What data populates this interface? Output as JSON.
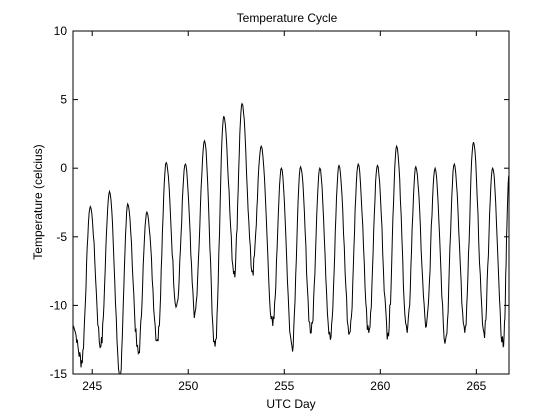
{
  "chart_data": {
    "type": "line",
    "title": "Temperature Cycle",
    "xlabel": "UTC Day",
    "ylabel": "Temperature (celcius)",
    "xlim": [
      244,
      266.7
    ],
    "ylim": [
      -15,
      10
    ],
    "xticks": [
      245,
      250,
      255,
      260,
      265
    ],
    "yticks": [
      -15,
      -10,
      -5,
      0,
      5,
      10
    ],
    "grid": false,
    "line_color": "#000000",
    "series": [
      {
        "extrema": [
          [
            244.0,
            -11.5
          ],
          [
            244.45,
            -14.0
          ],
          [
            244.9,
            -2.8
          ],
          [
            245.45,
            -13.0
          ],
          [
            245.9,
            -1.7
          ],
          [
            246.45,
            -15.0
          ],
          [
            246.85,
            -2.6
          ],
          [
            247.4,
            -13.5
          ],
          [
            247.85,
            -3.2
          ],
          [
            248.4,
            -12.5
          ],
          [
            248.85,
            0.4
          ],
          [
            249.4,
            -10.0
          ],
          [
            249.85,
            0.3
          ],
          [
            250.35,
            -10.5
          ],
          [
            250.85,
            2.0
          ],
          [
            251.4,
            -13.0
          ],
          [
            251.85,
            3.8
          ],
          [
            252.4,
            -7.5
          ],
          [
            252.8,
            4.7
          ],
          [
            253.35,
            -7.5
          ],
          [
            253.8,
            1.6
          ],
          [
            254.4,
            -11.5
          ],
          [
            254.85,
            0.0
          ],
          [
            255.4,
            -13.0
          ],
          [
            255.85,
            0.1
          ],
          [
            256.4,
            -12.0
          ],
          [
            256.85,
            0.0
          ],
          [
            257.4,
            -12.5
          ],
          [
            257.85,
            0.2
          ],
          [
            258.4,
            -12.0
          ],
          [
            258.85,
            0.3
          ],
          [
            259.4,
            -12.0
          ],
          [
            259.85,
            0.2
          ],
          [
            260.4,
            -12.0
          ],
          [
            260.85,
            1.6
          ],
          [
            261.4,
            -12.0
          ],
          [
            261.85,
            0.1
          ],
          [
            262.4,
            -11.5
          ],
          [
            262.85,
            0.0
          ],
          [
            263.4,
            -12.5
          ],
          [
            263.85,
            0.3
          ],
          [
            264.4,
            -12.0
          ],
          [
            264.85,
            1.9
          ],
          [
            265.4,
            -12.0
          ],
          [
            265.85,
            0.0
          ],
          [
            266.4,
            -13.0
          ],
          [
            266.7,
            -0.5
          ]
        ]
      }
    ]
  }
}
